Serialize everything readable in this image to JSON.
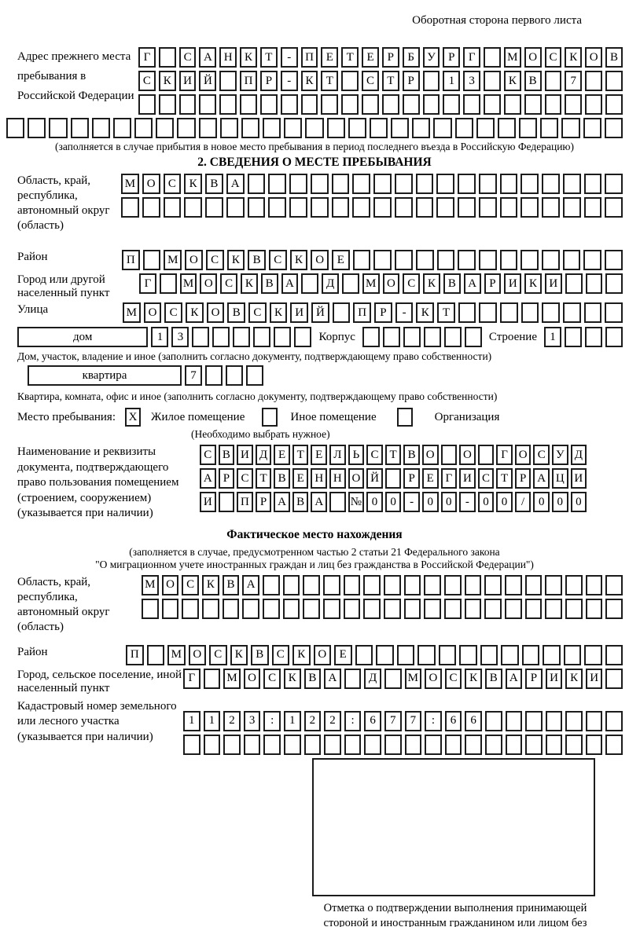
{
  "colors": {
    "border": "#1c1c1c",
    "background": "#ffffff",
    "text": "#000000"
  },
  "header": {
    "note": "Оборотная сторона первого листа"
  },
  "prev_address": {
    "label": "Адрес прежнего места пребывания в Российской Федерации",
    "rows": [
      [
        "Г",
        "",
        "С",
        "А",
        "Н",
        "К",
        "Т",
        "-",
        "П",
        "Е",
        "Т",
        "Е",
        "Р",
        "Б",
        "У",
        "Р",
        "Г",
        "",
        "М",
        "О",
        "С",
        "К",
        "О",
        "В"
      ],
      [
        "С",
        "К",
        "И",
        "Й",
        "",
        "П",
        "Р",
        "-",
        "К",
        "Т",
        "",
        "С",
        "Т",
        "Р",
        "",
        "1",
        "3",
        "",
        "К",
        "В",
        "",
        "7",
        "",
        ""
      ],
      [
        "",
        "",
        "",
        "",
        "",
        "",
        "",
        "",
        "",
        "",
        "",
        "",
        "",
        "",
        "",
        "",
        "",
        "",
        "",
        "",
        "",
        "",
        "",
        ""
      ]
    ],
    "full_row": [
      "",
      "",
      "",
      "",
      "",
      "",
      "",
      "",
      "",
      "",
      "",
      "",
      "",
      "",
      "",
      "",
      "",
      "",
      "",
      "",
      "",
      "",
      "",
      "",
      "",
      "",
      "",
      "",
      ""
    ],
    "note": "(заполняется в случае прибытия в новое место пребывания в период последнего въезда в Российскую Федерацию)"
  },
  "section2": {
    "title": "2. СВЕДЕНИЯ О МЕСТЕ ПРЕБЫВАНИЯ",
    "region": {
      "label": "Область, край, республика, автономный округ (область)",
      "rows": [
        [
          "М",
          "О",
          "С",
          "К",
          "В",
          "А",
          "",
          "",
          "",
          "",
          "",
          "",
          "",
          "",
          "",
          "",
          "",
          "",
          "",
          "",
          "",
          "",
          "",
          ""
        ],
        [
          "",
          "",
          "",
          "",
          "",
          "",
          "",
          "",
          "",
          "",
          "",
          "",
          "",
          "",
          "",
          "",
          "",
          "",
          "",
          "",
          "",
          "",
          "",
          ""
        ]
      ]
    },
    "district": {
      "label": "Район",
      "row": [
        "П",
        "",
        "М",
        "О",
        "С",
        "К",
        "В",
        "С",
        "К",
        "О",
        "Е",
        "",
        "",
        "",
        "",
        "",
        "",
        "",
        "",
        "",
        "",
        "",
        "",
        ""
      ]
    },
    "city": {
      "label": "Город или другой населенный пункт",
      "row": [
        "Г",
        "",
        "М",
        "О",
        "С",
        "К",
        "В",
        "А",
        "",
        "Д",
        "",
        "М",
        "О",
        "С",
        "К",
        "В",
        "А",
        "Р",
        "И",
        "К",
        "И",
        "",
        "",
        ""
      ]
    },
    "street": {
      "label": "Улица",
      "row": [
        "М",
        "О",
        "С",
        "К",
        "О",
        "В",
        "С",
        "К",
        "И",
        "Й",
        "",
        "П",
        "Р",
        "-",
        "К",
        "Т",
        "",
        "",
        "",
        "",
        "",
        "",
        "",
        ""
      ]
    },
    "house": {
      "box_label": "дом",
      "cells": [
        "1",
        "3",
        "",
        "",
        "",
        "",
        "",
        ""
      ],
      "korpus_label": "Корпус",
      "korpus_cells": [
        "",
        "",
        "",
        "",
        "",
        ""
      ],
      "stroenie_label": "Строение",
      "stroenie_cells": [
        "1",
        "",
        "",
        ""
      ]
    },
    "house_note": "Дом, участок, владение и иное (заполнить согласно документу, подтверждающему право собственности)",
    "apartment": {
      "box_label": "квартира",
      "cells": [
        "7",
        "",
        "",
        ""
      ]
    },
    "apartment_note": "Квартира, комната, офис и иное (заполнить согласно документу, подтверждающему право собственности)",
    "stay": {
      "label": "Место пребывания:",
      "options": [
        {
          "label": "Жилое помещение",
          "mark": "X"
        },
        {
          "label": "Иное помещение",
          "mark": ""
        },
        {
          "label": "Организация",
          "mark": ""
        }
      ],
      "note": "(Необходимо выбрать нужное)"
    },
    "document": {
      "label": "Наименование и реквизиты документа, подтверждающего право пользования помещением (строением, сооружением) (указывается при наличии)",
      "rows": [
        [
          "С",
          "В",
          "И",
          "Д",
          "Е",
          "Т",
          "Е",
          "Л",
          "Ь",
          "С",
          "Т",
          "В",
          "О",
          "",
          "О",
          "",
          "Г",
          "О",
          "С",
          "У",
          "Д"
        ],
        [
          "А",
          "Р",
          "С",
          "Т",
          "В",
          "Е",
          "Н",
          "Н",
          "О",
          "Й",
          "",
          "Р",
          "Е",
          "Г",
          "И",
          "С",
          "Т",
          "Р",
          "А",
          "Ц",
          "И"
        ],
        [
          "И",
          "",
          "П",
          "Р",
          "А",
          "В",
          "А",
          "",
          "№",
          "0",
          "0",
          "-",
          "0",
          "0",
          "-",
          "0",
          "0",
          "/",
          "0",
          "0",
          "0"
        ]
      ]
    }
  },
  "actual_location": {
    "title": "Фактическое место нахождения",
    "note_line1": "(заполняется в случае, предусмотренном частью 2 статьи 21 Федерального закона",
    "note_line2": "\"О миграционном учете иностранных граждан и лиц без гражданства в Российской Федерации\")",
    "region": {
      "label": "Область, край, республика, автономный округ (область)",
      "rows": [
        [
          "М",
          "О",
          "С",
          "К",
          "В",
          "А",
          "",
          "",
          "",
          "",
          "",
          "",
          "",
          "",
          "",
          "",
          "",
          "",
          "",
          "",
          "",
          "",
          "",
          ""
        ],
        [
          "",
          "",
          "",
          "",
          "",
          "",
          "",
          "",
          "",
          "",
          "",
          "",
          "",
          "",
          "",
          "",
          "",
          "",
          "",
          "",
          "",
          "",
          "",
          ""
        ]
      ]
    },
    "district": {
      "label": "Район",
      "row": [
        "П",
        "",
        "М",
        "О",
        "С",
        "К",
        "В",
        "С",
        "К",
        "О",
        "Е",
        "",
        "",
        "",
        "",
        "",
        "",
        "",
        "",
        "",
        "",
        "",
        "",
        ""
      ]
    },
    "city": {
      "label": "Город, сельское поселение, иной населенный пункт",
      "row": [
        "Г",
        "",
        "М",
        "О",
        "С",
        "К",
        "В",
        "А",
        "",
        "Д",
        "",
        "М",
        "О",
        "С",
        "К",
        "В",
        "А",
        "Р",
        "И",
        "К",
        "И",
        ""
      ]
    },
    "cadastral": {
      "label": "Кадастровый номер земельного или лесного участка (указывается при наличии)",
      "rows": [
        [
          "1",
          "1",
          "2",
          "3",
          ":",
          "1",
          "2",
          "2",
          ":",
          "6",
          "7",
          "7",
          ":",
          "6",
          "6",
          "",
          "",
          "",
          "",
          "",
          "",
          ""
        ],
        [
          "",
          "",
          "",
          "",
          "",
          "",
          "",
          "",
          "",
          "",
          "",
          "",
          "",
          "",
          "",
          "",
          "",
          "",
          "",
          "",
          "",
          ""
        ]
      ]
    }
  },
  "stamp": {
    "caption": "Отметка о подтверждении выполнения принимающей стороной и иностранным гражданином или лицом без гражданства действий, необходимых для его постановки на учет по месту пребывания"
  }
}
